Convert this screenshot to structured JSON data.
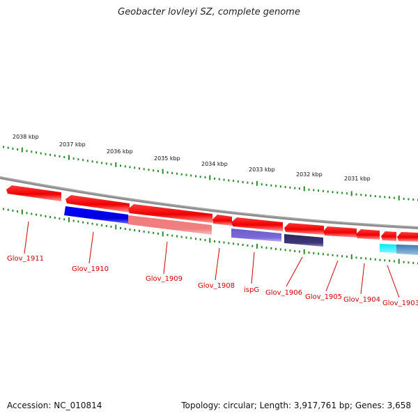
{
  "title": "Geobacter lovleyi SZ, complete genome",
  "footer": {
    "accession": "Accession: NC_010814",
    "topology": "Topology: circular; Length: 3,917,761 bp; Genes: 3,658"
  },
  "scale_labels": [
    "2038 kbp",
    "2037 kbp",
    "2036 kbp",
    "2035 kbp",
    "2034 kbp",
    "2033 kbp",
    "2032 kbp",
    "2031 kbp"
  ],
  "gene_labels": [
    "Glov_1911",
    "Glov_1910",
    "Glov_1909",
    "Glov_1908",
    "ispG",
    "Glov_1906",
    "Glov_1905",
    "Glov_1904",
    "Glov_1903"
  ],
  "colors": {
    "gene_forward": "#ff0000",
    "feature_blue": "#0000ee",
    "feature_pink": "#f08080",
    "feature_lavender": "#7b68cc",
    "feature_navy": "#3a3470",
    "feature_cyan": "#00e5ff",
    "feature_steel": "#4682b4",
    "backbone": "#808080",
    "ticks": "#2a8a2a",
    "label_red": "#cc0000"
  }
}
